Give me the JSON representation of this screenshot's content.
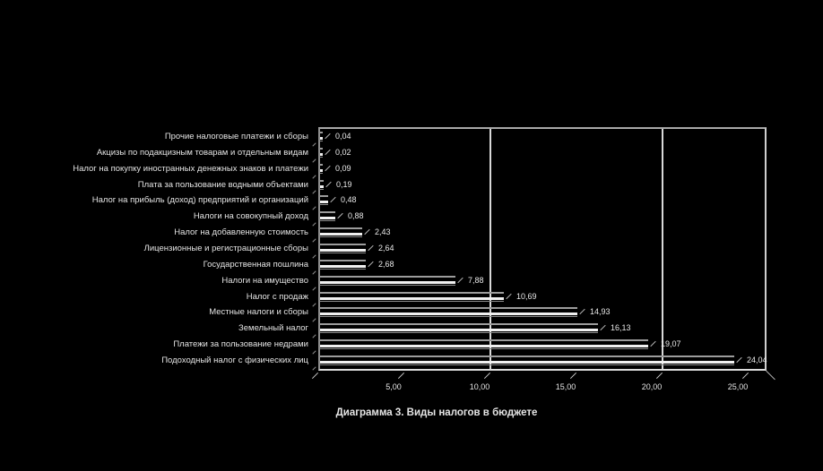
{
  "title": "Диаграмма 3. Виды налогов в бюджете",
  "chart_data": {
    "type": "bar",
    "orientation": "horizontal",
    "title": "Диаграмма 3. Виды налогов в бюджете",
    "xlabel": "",
    "ylabel": "",
    "xlim": [
      0,
      25
    ],
    "grid": "vertical gridlines at 10 and 20",
    "gridline_values": [
      10,
      20
    ],
    "legend_position": "none",
    "style": "3d horizontal bar chart, black background, white bars, data labels at bar ends",
    "x_ticks": [
      {
        "value": 5,
        "label": "5,00"
      },
      {
        "value": 10,
        "label": "10,00"
      },
      {
        "value": 15,
        "label": "15,00"
      },
      {
        "value": 20,
        "label": "20,00"
      },
      {
        "value": 25,
        "label": "25,00"
      }
    ],
    "categories": [
      "Прочие налоговые платежи и сборы",
      "Акцизы по подакцизным товарам и отдельным видам",
      "Налог на покупку иностранных денежных знаков и платежи",
      "Плата за пользование водными объектами",
      "Налог на прибыль (доход) предприятий и организаций",
      "Налоги на совокупный доход",
      "Налог на добавленную стоимость",
      "Лицензионные и регистрационные сборы",
      "Государственная пошлина",
      "Налоги на имущество",
      "Налог с продаж",
      "Местные налоги и сборы",
      "Земельный налог",
      "Платежи за пользование недрами",
      "Подоходный налог с физических лиц"
    ],
    "values": [
      0.04,
      0.02,
      0.09,
      0.19,
      0.48,
      0.88,
      2.43,
      2.64,
      2.68,
      7.88,
      10.69,
      14.93,
      16.13,
      19.07,
      24.04
    ],
    "value_labels": [
      "0,04",
      "0,02",
      "0,09",
      "0,19",
      "0,48",
      "0,88",
      "2,43",
      "2,64",
      "2,68",
      "7,88",
      "10,69",
      "14,93",
      "16,13",
      "19,07",
      "24,04"
    ]
  },
  "colors": {
    "background": "#000000",
    "bar_face": "#f0f0f0",
    "bar_top_edge": "#9c9c9c",
    "text": "#e6e6e6",
    "plot_border": "#b0b0b0",
    "gridline": "#d9d9d9"
  }
}
